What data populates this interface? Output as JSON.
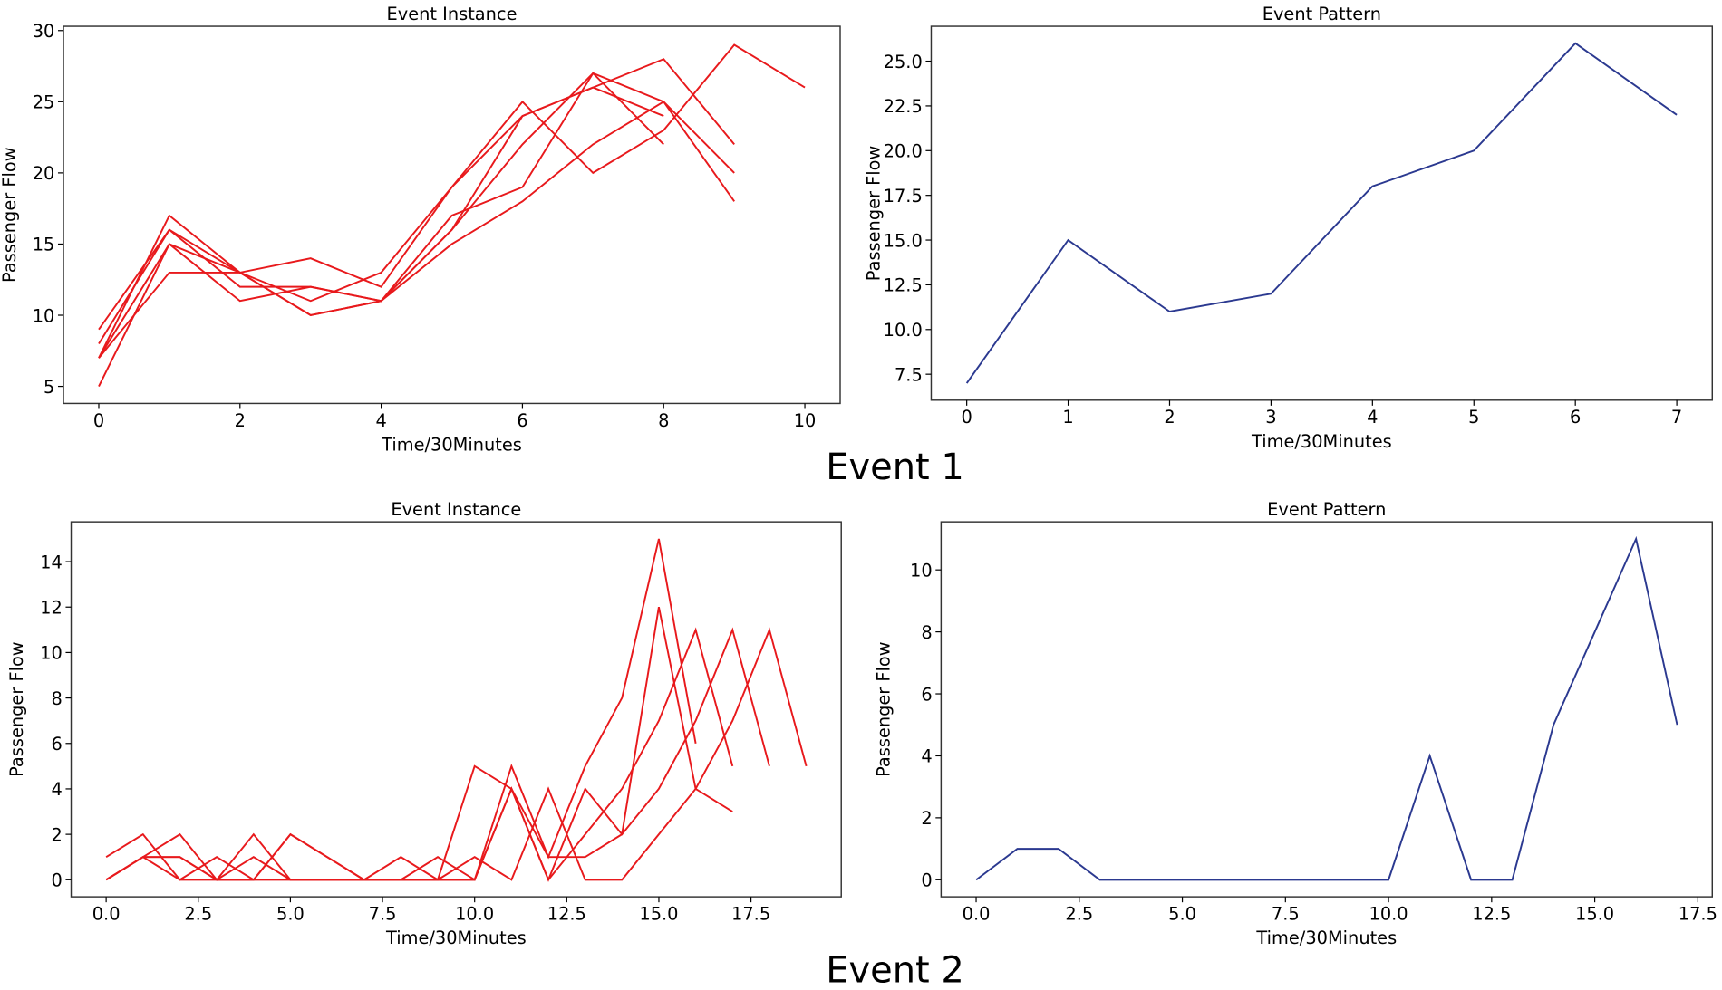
{
  "event_labels": [
    "Event 1",
    "Event 2"
  ],
  "colors": {
    "instance": "#e8191c",
    "pattern": "#2b3990",
    "axes": "#333333"
  },
  "chart_data": [
    {
      "type": "line",
      "title": "Event Instance",
      "xlabel": "Time/30Minutes",
      "ylabel": "Passenger Flow",
      "xlim": [
        -0.5,
        10.5
      ],
      "ylim": [
        3.8,
        30.3
      ],
      "xticks": [
        0,
        2,
        4,
        6,
        8,
        10
      ],
      "xtick_labels": [
        "0",
        "2",
        "4",
        "6",
        "8",
        "10"
      ],
      "yticks": [
        5,
        10,
        15,
        20,
        25,
        30
      ],
      "ytick_labels": [
        "5",
        "10",
        "15",
        "20",
        "25",
        "30"
      ],
      "grid": false,
      "series": [
        {
          "x": [
            0,
            1,
            2,
            3,
            4,
            5,
            6,
            7,
            8,
            9,
            10
          ],
          "values": [
            9,
            16,
            13,
            14,
            12,
            19,
            25,
            20,
            23,
            29,
            26
          ]
        },
        {
          "x": [
            0,
            1,
            2,
            3,
            4,
            5,
            6,
            7,
            8,
            9
          ],
          "values": [
            7,
            15,
            13,
            11,
            13,
            19,
            24,
            26,
            28,
            22
          ]
        },
        {
          "x": [
            0,
            1,
            2,
            3,
            4,
            5,
            6,
            7,
            8,
            9
          ],
          "values": [
            8,
            16,
            12,
            12,
            11,
            17,
            19,
            27,
            25,
            20
          ]
        },
        {
          "x": [
            0,
            1,
            2,
            3,
            4,
            5,
            6,
            7,
            8
          ],
          "values": [
            5,
            15,
            11,
            12,
            11,
            16,
            22,
            27,
            22
          ]
        },
        {
          "x": [
            0,
            1,
            2,
            3,
            4,
            5,
            6,
            7,
            8,
            9
          ],
          "values": [
            7,
            17,
            13,
            10,
            11,
            15,
            18,
            22,
            25,
            18
          ]
        },
        {
          "x": [
            0,
            1,
            2,
            3,
            4,
            5,
            6,
            7,
            8
          ],
          "values": [
            7,
            13,
            13,
            10,
            11,
            16,
            24,
            26,
            24
          ]
        }
      ]
    },
    {
      "type": "line",
      "title": "Event Pattern",
      "xlabel": "Time/30Minutes",
      "ylabel": "Passenger Flow",
      "xlim": [
        -0.35,
        7.35
      ],
      "ylim": [
        6.05,
        26.95
      ],
      "xticks": [
        0,
        1,
        2,
        3,
        4,
        5,
        6,
        7
      ],
      "xtick_labels": [
        "0",
        "1",
        "2",
        "3",
        "4",
        "5",
        "6",
        "7"
      ],
      "yticks": [
        7.5,
        10,
        12.5,
        15,
        17.5,
        20,
        22.5,
        25
      ],
      "ytick_labels": [
        "7.5",
        "10.0",
        "12.5",
        "15.0",
        "17.5",
        "20.0",
        "22.5",
        "25.0"
      ],
      "grid": false,
      "series": [
        {
          "x": [
            0,
            1,
            2,
            3,
            4,
            5,
            6,
            7
          ],
          "values": [
            7,
            15,
            11,
            12,
            18,
            20,
            26,
            22
          ]
        }
      ]
    },
    {
      "type": "line",
      "title": "Event Instance",
      "xlabel": "Time/30Minutes",
      "ylabel": "Passenger Flow",
      "xlim": [
        -0.95,
        19.95
      ],
      "ylim": [
        -0.75,
        15.75
      ],
      "xticks": [
        0,
        2.5,
        5,
        7.5,
        10,
        12.5,
        15,
        17.5
      ],
      "xtick_labels": [
        "0.0",
        "2.5",
        "5.0",
        "7.5",
        "10.0",
        "12.5",
        "15.0",
        "17.5"
      ],
      "yticks": [
        0,
        2,
        4,
        6,
        8,
        10,
        12,
        14
      ],
      "ytick_labels": [
        "0",
        "2",
        "4",
        "6",
        "8",
        "10",
        "12",
        "14"
      ],
      "grid": false,
      "series": [
        {
          "x": [
            0,
            1,
            2,
            3,
            4,
            5,
            6,
            7,
            8,
            9,
            10,
            11,
            12,
            13,
            14,
            15,
            16
          ],
          "values": [
            0,
            1,
            1,
            0,
            0,
            2,
            1,
            0,
            0,
            0,
            5,
            4,
            1,
            5,
            8,
            15,
            6
          ]
        },
        {
          "x": [
            0,
            1,
            2,
            3,
            4,
            5,
            6,
            7,
            8,
            9,
            10,
            11,
            12,
            13,
            14,
            15,
            16,
            17
          ],
          "values": [
            0,
            1,
            0,
            1,
            0,
            0,
            0,
            0,
            1,
            0,
            0,
            5,
            1,
            1,
            2,
            12,
            4,
            3
          ]
        },
        {
          "x": [
            0,
            1,
            2,
            3,
            4,
            5,
            6,
            7,
            8,
            9,
            10,
            11,
            12,
            13,
            14,
            15,
            16,
            17
          ],
          "values": [
            0,
            1,
            2,
            0,
            2,
            0,
            0,
            0,
            0,
            1,
            0,
            4,
            0,
            2,
            4,
            7,
            11,
            5
          ]
        },
        {
          "x": [
            0,
            1,
            2,
            3,
            4,
            5,
            6,
            7,
            8,
            9,
            10,
            11,
            12,
            13,
            14,
            15,
            16,
            17,
            18
          ],
          "values": [
            1,
            2,
            0,
            0,
            0,
            2,
            1,
            0,
            0,
            0,
            0,
            4,
            0,
            4,
            2,
            4,
            7,
            11,
            5
          ]
        },
        {
          "x": [
            0,
            1,
            2,
            3,
            4,
            5,
            6,
            7,
            8,
            9,
            10,
            11,
            12,
            13,
            14,
            15,
            16,
            17,
            18,
            19
          ],
          "values": [
            0,
            1,
            1,
            0,
            1,
            0,
            0,
            0,
            0,
            0,
            1,
            0,
            4,
            0,
            0,
            2,
            4,
            7,
            11,
            5
          ]
        }
      ]
    },
    {
      "type": "line",
      "title": "Event Pattern",
      "xlabel": "Time/30Minutes",
      "ylabel": "Passenger Flow",
      "xlim": [
        -0.85,
        17.85
      ],
      "ylim": [
        -0.55,
        11.55
      ],
      "xticks": [
        0,
        2.5,
        5,
        7.5,
        10,
        12.5,
        15,
        17.5
      ],
      "xtick_labels": [
        "0.0",
        "2.5",
        "5.0",
        "7.5",
        "10.0",
        "12.5",
        "15.0",
        "17.5"
      ],
      "yticks": [
        0,
        2,
        4,
        6,
        8,
        10
      ],
      "ytick_labels": [
        "0",
        "2",
        "4",
        "6",
        "8",
        "10"
      ],
      "grid": false,
      "series": [
        {
          "x": [
            0,
            1,
            2,
            3,
            4,
            5,
            6,
            7,
            8,
            9,
            10,
            11,
            12,
            13,
            14,
            15,
            16,
            17
          ],
          "values": [
            0,
            1,
            1,
            0,
            0,
            0,
            0,
            0,
            0,
            0,
            0,
            4,
            0,
            0,
            5,
            8,
            11,
            5
          ]
        }
      ]
    }
  ]
}
